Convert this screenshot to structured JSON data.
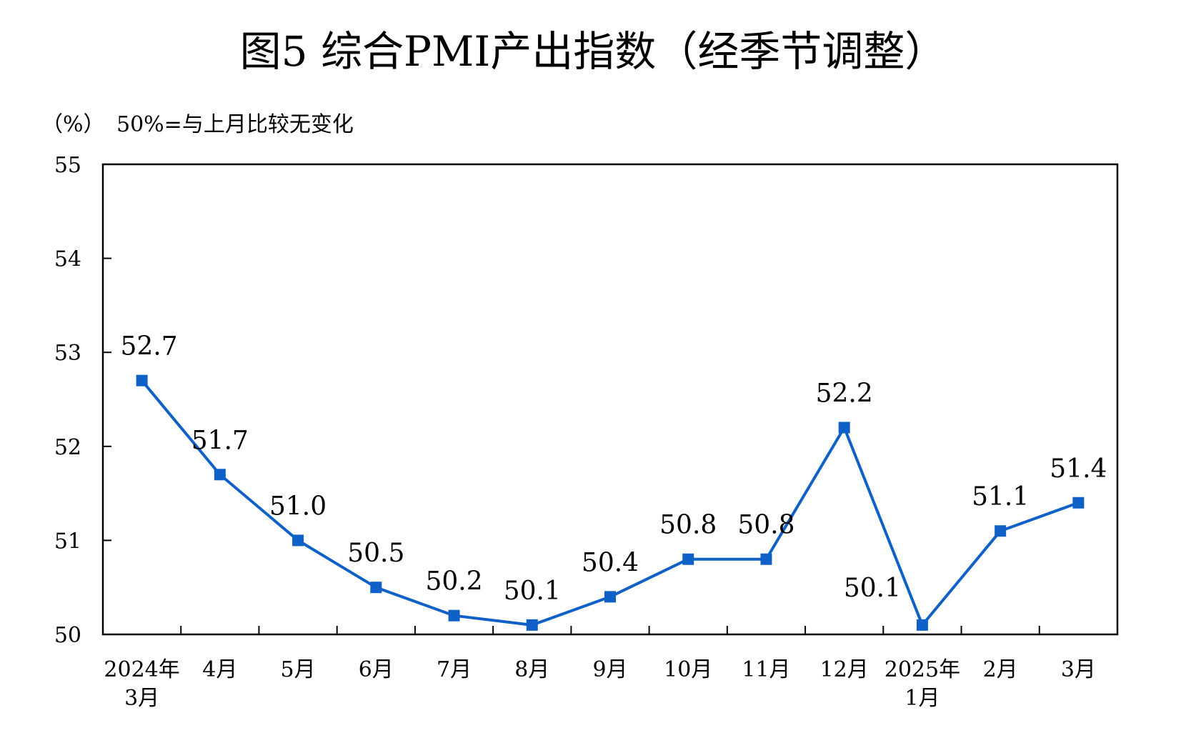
{
  "chart_data": {
    "type": "line",
    "title": "图5  综合PMI产出指数（经季节调整）",
    "unit_label": "（%）",
    "note": "50%=与上月比较无变化",
    "categories": [
      [
        "2024年",
        "3月"
      ],
      [
        "4月"
      ],
      [
        "5月"
      ],
      [
        "6月"
      ],
      [
        "7月"
      ],
      [
        "8月"
      ],
      [
        "9月"
      ],
      [
        "10月"
      ],
      [
        "11月"
      ],
      [
        "12月"
      ],
      [
        "2025年",
        "1月"
      ],
      [
        "2月"
      ],
      [
        "3月"
      ]
    ],
    "series": [
      {
        "values": [
          52.7,
          51.7,
          51.0,
          50.5,
          50.2,
          50.1,
          50.4,
          50.8,
          50.8,
          52.2,
          50.1,
          51.1,
          51.4
        ],
        "labels": [
          "52.7",
          "51.7",
          "51.0",
          "50.5",
          "50.2",
          "50.1",
          "50.4",
          "50.8",
          "50.8",
          "52.2",
          "50.1",
          "51.1",
          "51.4"
        ],
        "color": "#0f61c8"
      }
    ],
    "ylim": [
      50,
      55
    ],
    "yticks": [
      "50",
      "51",
      "52",
      "53",
      "54",
      "55"
    ],
    "grid": false,
    "legend": "none"
  }
}
